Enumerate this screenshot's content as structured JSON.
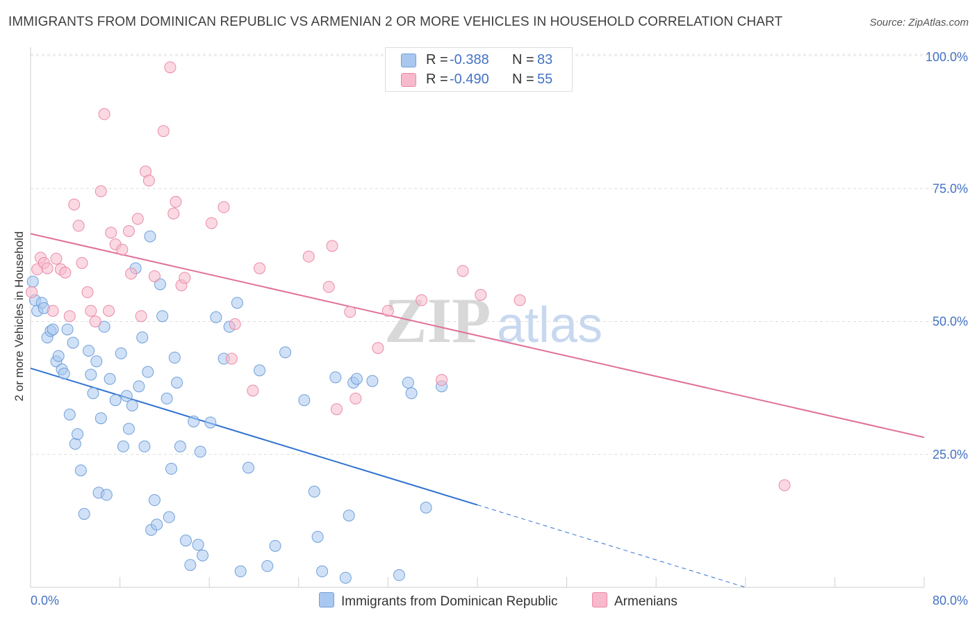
{
  "title": "IMMIGRANTS FROM DOMINICAN REPUBLIC VS ARMENIAN 2 OR MORE VEHICLES IN HOUSEHOLD CORRELATION CHART",
  "source": "Source: ZipAtlas.com",
  "watermark": {
    "zip": "ZIP",
    "atlas": "atlas"
  },
  "stats": {
    "blue": {
      "r_label": "R =",
      "r_value": "-0.388",
      "n_label": "N =",
      "n_value": "83"
    },
    "pink": {
      "r_label": "R =",
      "r_value": "-0.490",
      "n_label": "N =",
      "n_value": "55"
    }
  },
  "legend": {
    "blue_label": "Immigrants from Dominican Republic",
    "pink_label": "Armenians"
  },
  "colors": {
    "blue_fill": "#a9c8f0",
    "blue_stroke": "#6f9fd8",
    "blue_line": "#2f72d0",
    "pink_fill": "#f7b9cb",
    "pink_stroke": "#e98aa8",
    "pink_line": "#e0709a",
    "axis_text": "#4472c4"
  },
  "chart_data": {
    "type": "scatter",
    "title": "IMMIGRANTS FROM DOMINICAN REPUBLIC VS ARMENIAN 2 OR MORE VEHICLES IN HOUSEHOLD CORRELATION CHART",
    "xlabel": "",
    "ylabel": "2 or more Vehicles in Household",
    "xlim": [
      0,
      80
    ],
    "ylim": [
      0,
      102
    ],
    "x_tick_labels": [
      "0.0%",
      "80.0%"
    ],
    "y_tick_labels": [
      "25.0%",
      "50.0%",
      "75.0%",
      "100.0%"
    ],
    "y_ticks": [
      25,
      50,
      75,
      100
    ],
    "grid": true,
    "legend_position": "bottom-center",
    "series": [
      {
        "name": "Immigrants from Dominican Republic",
        "color": "blue",
        "trend": {
          "x0": 0,
          "y0": 41.2,
          "x1": 40,
          "y1": 15.5,
          "dashed_to_x": 64,
          "dashed_to_y": 0
        },
        "points": [
          [
            0.2,
            57.5
          ],
          [
            0.4,
            54
          ],
          [
            0.6,
            52
          ],
          [
            1.0,
            53.5
          ],
          [
            1.2,
            52.5
          ],
          [
            1.5,
            47
          ],
          [
            1.8,
            48.2
          ],
          [
            2.0,
            48.5
          ],
          [
            2.3,
            42.5
          ],
          [
            2.5,
            43.5
          ],
          [
            2.8,
            41
          ],
          [
            3.0,
            40.2
          ],
          [
            3.3,
            48.5
          ],
          [
            3.5,
            32.5
          ],
          [
            3.8,
            46
          ],
          [
            4.0,
            27
          ],
          [
            4.2,
            28.8
          ],
          [
            4.5,
            22
          ],
          [
            4.8,
            13.8
          ],
          [
            5.2,
            44.5
          ],
          [
            5.4,
            40
          ],
          [
            5.6,
            36.5
          ],
          [
            5.9,
            42.5
          ],
          [
            6.1,
            17.8
          ],
          [
            6.3,
            31.8
          ],
          [
            6.6,
            49
          ],
          [
            6.8,
            17.4
          ],
          [
            7.1,
            39.2
          ],
          [
            7.6,
            35.2
          ],
          [
            8.1,
            44
          ],
          [
            8.3,
            26.5
          ],
          [
            8.6,
            36
          ],
          [
            8.8,
            29.8
          ],
          [
            9.1,
            34.2
          ],
          [
            9.4,
            60
          ],
          [
            9.7,
            37.8
          ],
          [
            10.0,
            47
          ],
          [
            10.2,
            26.5
          ],
          [
            10.5,
            40.5
          ],
          [
            10.8,
            10.8
          ],
          [
            11.1,
            16.4
          ],
          [
            11.3,
            11.8
          ],
          [
            11.6,
            57
          ],
          [
            11.8,
            51
          ],
          [
            12.2,
            35.5
          ],
          [
            12.4,
            13.2
          ],
          [
            12.6,
            22.3
          ],
          [
            12.9,
            43.2
          ],
          [
            13.1,
            38.5
          ],
          [
            13.4,
            26.5
          ],
          [
            13.9,
            8.8
          ],
          [
            14.3,
            4.2
          ],
          [
            14.6,
            31.2
          ],
          [
            15.0,
            8
          ],
          [
            15.2,
            25.5
          ],
          [
            15.4,
            6
          ],
          [
            16.1,
            31
          ],
          [
            16.6,
            50.8
          ],
          [
            17.3,
            43
          ],
          [
            17.8,
            49
          ],
          [
            18.5,
            53.5
          ],
          [
            18.8,
            3
          ],
          [
            19.5,
            22.5
          ],
          [
            20.5,
            40.8
          ],
          [
            21.2,
            4
          ],
          [
            21.9,
            7.8
          ],
          [
            22.8,
            44.2
          ],
          [
            24.5,
            35.2
          ],
          [
            25.4,
            18
          ],
          [
            25.7,
            9.5
          ],
          [
            26.1,
            3
          ],
          [
            27.3,
            39.5
          ],
          [
            28.2,
            1.8
          ],
          [
            28.5,
            13.5
          ],
          [
            28.9,
            38.5
          ],
          [
            29.2,
            39.2
          ],
          [
            30.6,
            38.8
          ],
          [
            33.0,
            2.3
          ],
          [
            33.8,
            38.5
          ],
          [
            34.1,
            36.5
          ],
          [
            35.4,
            15
          ],
          [
            36.8,
            37.8
          ],
          [
            10.7,
            66
          ]
        ]
      },
      {
        "name": "Armenians",
        "color": "pink",
        "trend": {
          "x0": 0,
          "y0": 66.5,
          "x1": 80,
          "y1": 28.2
        },
        "points": [
          [
            0.1,
            55.5
          ],
          [
            0.6,
            59.8
          ],
          [
            0.9,
            62
          ],
          [
            1.2,
            61
          ],
          [
            1.5,
            60
          ],
          [
            2.0,
            52
          ],
          [
            2.3,
            61.8
          ],
          [
            2.7,
            59.8
          ],
          [
            3.1,
            59.2
          ],
          [
            3.5,
            51
          ],
          [
            3.9,
            72
          ],
          [
            4.3,
            68
          ],
          [
            4.6,
            61
          ],
          [
            5.1,
            55.5
          ],
          [
            5.4,
            52
          ],
          [
            5.8,
            50
          ],
          [
            6.3,
            74.5
          ],
          [
            6.6,
            89
          ],
          [
            7.0,
            52
          ],
          [
            7.2,
            66.7
          ],
          [
            7.6,
            64.5
          ],
          [
            8.2,
            63.5
          ],
          [
            8.8,
            67
          ],
          [
            9.0,
            59
          ],
          [
            9.6,
            69.3
          ],
          [
            9.9,
            51
          ],
          [
            10.3,
            78.2
          ],
          [
            10.6,
            76.5
          ],
          [
            11.1,
            58.5
          ],
          [
            11.9,
            85.8
          ],
          [
            12.5,
            97.8
          ],
          [
            12.8,
            70.3
          ],
          [
            13.0,
            72.5
          ],
          [
            13.5,
            56.8
          ],
          [
            13.8,
            58.2
          ],
          [
            16.2,
            68.5
          ],
          [
            17.3,
            71.5
          ],
          [
            18.0,
            43
          ],
          [
            18.3,
            49.5
          ],
          [
            19.9,
            37
          ],
          [
            20.5,
            60
          ],
          [
            24.9,
            62.2
          ],
          [
            26.7,
            56.5
          ],
          [
            27.0,
            64.2
          ],
          [
            27.4,
            33.5
          ],
          [
            28.6,
            51.8
          ],
          [
            29.1,
            35.5
          ],
          [
            31.1,
            45
          ],
          [
            32.0,
            52
          ],
          [
            35.0,
            54
          ],
          [
            36.8,
            39
          ],
          [
            38.7,
            59.5
          ],
          [
            40.3,
            55
          ],
          [
            43.8,
            54
          ],
          [
            67.5,
            19.2
          ]
        ]
      }
    ]
  }
}
